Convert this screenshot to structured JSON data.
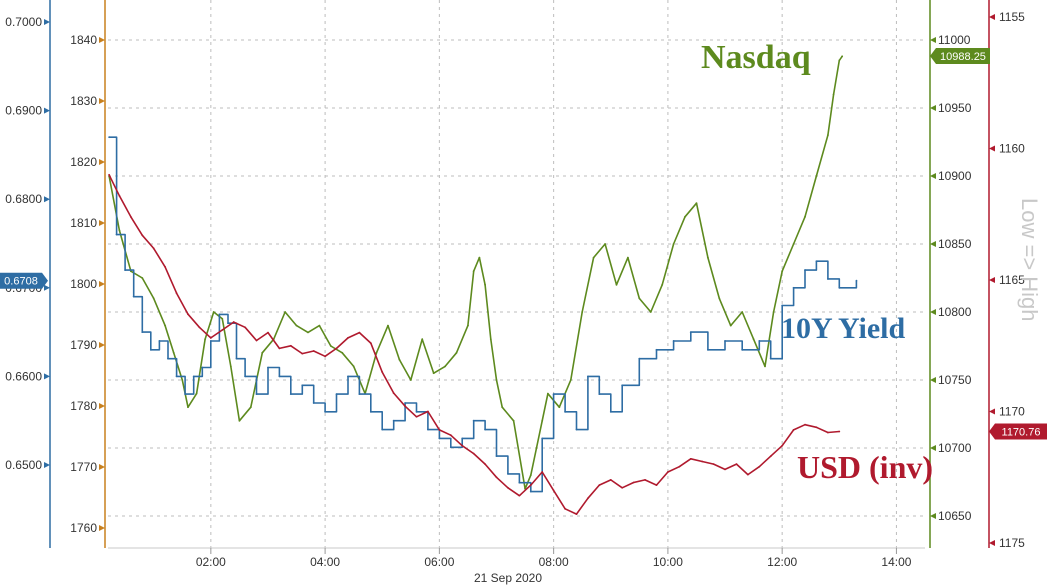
{
  "chart_data": {
    "type": "line",
    "xlabel": "21 Sep 2020",
    "x_ticks": [
      "02:00",
      "04:00",
      "06:00",
      "08:00",
      "10:00",
      "12:00",
      "14:00"
    ],
    "x_range_hours": [
      0.2,
      14.5
    ],
    "grid": true,
    "side_label": "Low => High",
    "axes": {
      "fx": {
        "side": "left",
        "ylim": [
          0.6435,
          0.7025
        ],
        "ticks": [
          "0.7000",
          "0.6900",
          "0.6800",
          "0.6700",
          "0.6600",
          "0.6500"
        ],
        "color": "#2e6da4"
      },
      "gold": {
        "side": "left-inner",
        "ylim": [
          1755.5,
          1841.5
        ],
        "ticks": [
          "1840",
          "1830",
          "1820",
          "1810",
          "1800",
          "1790",
          "1780",
          "1770",
          "1760"
        ],
        "color": "#c8801e"
      },
      "nasdaq": {
        "side": "right",
        "ylim": [
          10627,
          11012
        ],
        "ticks": [
          "11000",
          "10950",
          "10900",
          "10850",
          "10800",
          "10750",
          "10700",
          "10650"
        ],
        "color": "#5d8a1e"
      },
      "usd": {
        "side": "right-outer",
        "ylim": [
          1175.2,
          1154.7
        ],
        "ticks": [
          "1155",
          "1160",
          "1165",
          "1170",
          "1175"
        ],
        "color": "#b01a2e",
        "inverted": true
      }
    },
    "series": [
      {
        "name": "Nasdaq",
        "axis": "nasdaq",
        "color": "#5d8a1e",
        "last_value": "10988.25",
        "x": [
          0.22,
          0.4,
          0.6,
          0.8,
          1.0,
          1.2,
          1.35,
          1.5,
          1.6,
          1.75,
          1.9,
          2.05,
          2.2,
          2.35,
          2.5,
          2.7,
          2.9,
          3.1,
          3.3,
          3.5,
          3.7,
          3.9,
          4.1,
          4.3,
          4.5,
          4.7,
          4.9,
          5.1,
          5.3,
          5.5,
          5.7,
          5.9,
          6.1,
          6.3,
          6.5,
          6.6,
          6.7,
          6.8,
          6.9,
          7.0,
          7.1,
          7.3,
          7.5,
          7.6,
          7.7,
          7.8,
          7.9,
          8.1,
          8.3,
          8.5,
          8.7,
          8.9,
          9.1,
          9.3,
          9.5,
          9.7,
          9.9,
          10.1,
          10.3,
          10.5,
          10.7,
          10.9,
          11.1,
          11.3,
          11.5,
          11.7,
          11.85,
          12.0,
          12.2,
          12.4,
          12.6,
          12.8,
          12.9,
          13.0,
          13.05
        ],
        "values": [
          10900,
          10860,
          10830,
          10825,
          10810,
          10790,
          10770,
          10750,
          10730,
          10740,
          10780,
          10800,
          10795,
          10760,
          10720,
          10730,
          10770,
          10780,
          10800,
          10790,
          10785,
          10790,
          10775,
          10770,
          10760,
          10740,
          10770,
          10790,
          10765,
          10750,
          10780,
          10755,
          10760,
          10770,
          10790,
          10830,
          10840,
          10820,
          10780,
          10750,
          10730,
          10720,
          10670,
          10680,
          10700,
          10720,
          10740,
          10730,
          10750,
          10800,
          10840,
          10850,
          10820,
          10840,
          10810,
          10800,
          10820,
          10850,
          10870,
          10880,
          10840,
          10810,
          10790,
          10800,
          10780,
          10760,
          10800,
          10830,
          10850,
          10870,
          10900,
          10930,
          10960,
          10985,
          10988
        ]
      },
      {
        "name": "10Y Yield",
        "axis": "fx",
        "color": "#2e6da4",
        "last_value": "0.6708",
        "step": true,
        "x": [
          0.22,
          0.35,
          0.5,
          0.65,
          0.8,
          0.95,
          1.1,
          1.25,
          1.4,
          1.55,
          1.7,
          1.85,
          2.0,
          2.15,
          2.3,
          2.45,
          2.6,
          2.8,
          3.0,
          3.2,
          3.4,
          3.6,
          3.8,
          4.0,
          4.2,
          4.4,
          4.6,
          4.8,
          5.0,
          5.2,
          5.4,
          5.6,
          5.8,
          6.0,
          6.2,
          6.4,
          6.6,
          6.8,
          7.0,
          7.2,
          7.4,
          7.6,
          7.8,
          8.0,
          8.2,
          8.4,
          8.6,
          8.8,
          9.0,
          9.2,
          9.5,
          9.8,
          10.1,
          10.4,
          10.7,
          11.0,
          11.3,
          11.6,
          11.8,
          12.0,
          12.2,
          12.4,
          12.6,
          12.8,
          13.0,
          13.3
        ],
        "values": [
          0.687,
          0.676,
          0.672,
          0.669,
          0.665,
          0.663,
          0.664,
          0.662,
          0.66,
          0.658,
          0.66,
          0.661,
          0.664,
          0.667,
          0.666,
          0.662,
          0.66,
          0.658,
          0.661,
          0.66,
          0.658,
          0.659,
          0.657,
          0.656,
          0.658,
          0.66,
          0.658,
          0.656,
          0.654,
          0.655,
          0.657,
          0.656,
          0.654,
          0.653,
          0.652,
          0.653,
          0.655,
          0.654,
          0.651,
          0.649,
          0.648,
          0.647,
          0.653,
          0.658,
          0.656,
          0.654,
          0.66,
          0.658,
          0.656,
          0.659,
          0.662,
          0.663,
          0.664,
          0.665,
          0.663,
          0.664,
          0.663,
          0.664,
          0.662,
          0.668,
          0.67,
          0.672,
          0.673,
          0.671,
          0.67,
          0.6708
        ]
      },
      {
        "name": "USD (inv)",
        "axis": "usd",
        "color": "#b01a2e",
        "last_value": "1170.76",
        "x": [
          0.22,
          0.4,
          0.6,
          0.8,
          1.0,
          1.2,
          1.4,
          1.6,
          1.8,
          2.0,
          2.2,
          2.4,
          2.6,
          2.8,
          3.0,
          3.2,
          3.4,
          3.6,
          3.8,
          4.0,
          4.2,
          4.4,
          4.6,
          4.8,
          5.0,
          5.2,
          5.4,
          5.6,
          5.8,
          6.0,
          6.2,
          6.4,
          6.6,
          6.8,
          7.0,
          7.2,
          7.4,
          7.6,
          7.8,
          8.0,
          8.2,
          8.4,
          8.6,
          8.8,
          9.0,
          9.2,
          9.4,
          9.6,
          9.8,
          10.0,
          10.2,
          10.4,
          10.6,
          10.8,
          11.0,
          11.2,
          11.4,
          11.6,
          11.8,
          12.0,
          12.2,
          12.4,
          12.6,
          12.8,
          13.0
        ],
        "values": [
          1161.0,
          1161.8,
          1162.6,
          1163.3,
          1163.8,
          1164.5,
          1165.5,
          1166.3,
          1166.8,
          1167.2,
          1166.9,
          1166.6,
          1166.8,
          1167.3,
          1167.0,
          1167.6,
          1167.5,
          1167.8,
          1167.7,
          1167.9,
          1167.6,
          1167.2,
          1167.0,
          1167.4,
          1168.5,
          1169.3,
          1169.8,
          1170.2,
          1170.0,
          1170.7,
          1170.9,
          1171.3,
          1171.6,
          1172.0,
          1172.5,
          1172.9,
          1173.2,
          1172.8,
          1172.3,
          1173.0,
          1173.7,
          1173.9,
          1173.3,
          1172.8,
          1172.6,
          1172.9,
          1172.7,
          1172.6,
          1172.8,
          1172.3,
          1172.1,
          1171.8,
          1171.9,
          1172.0,
          1172.2,
          1172.0,
          1172.4,
          1172.1,
          1171.7,
          1171.3,
          1170.7,
          1170.5,
          1170.6,
          1170.8,
          1170.76
        ]
      }
    ]
  },
  "labels": {
    "nasdaq": "Nasdaq",
    "yield": "10Y Yield",
    "usd": "USD (inv)",
    "side": "Low => High",
    "date": "21 Sep 2020"
  }
}
